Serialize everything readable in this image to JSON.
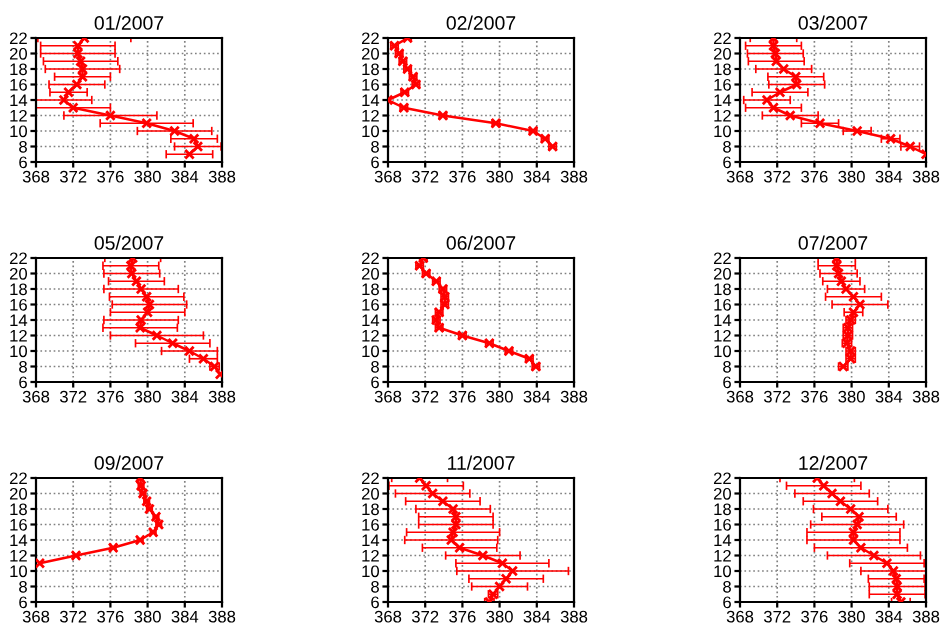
{
  "chart_data": [
    {
      "type": "line",
      "title": "01/2007",
      "color": "#ff0000",
      "marker": "cross",
      "line_style": "solid",
      "grid": true,
      "xlim": [
        368,
        388
      ],
      "ylim": [
        6,
        22
      ],
      "xticks": [
        368,
        372,
        376,
        380,
        384,
        388
      ],
      "yticks": [
        6,
        8,
        10,
        12,
        14,
        16,
        18,
        20,
        22
      ],
      "x": [
        384.5,
        385.4,
        385,
        382.9,
        379.9,
        376,
        372,
        371,
        371.5,
        372.4,
        373,
        373,
        372.8,
        372.5,
        372.5,
        373.2
      ],
      "values": [
        7,
        8,
        9,
        10,
        11,
        12,
        13,
        14,
        15,
        16,
        17,
        18,
        19,
        20,
        21,
        22
      ],
      "xerrors": [
        2.5,
        2.5,
        2.5,
        4,
        5,
        5,
        4,
        3,
        2,
        3,
        3,
        4,
        4,
        4,
        4,
        5
      ]
    },
    {
      "type": "line",
      "title": "02/2007",
      "color": "#ff0000",
      "marker": "cross",
      "line_style": "solid",
      "grid": true,
      "xlim": [
        368,
        388
      ],
      "ylim": [
        6,
        22
      ],
      "xticks": [
        368,
        372,
        376,
        380,
        384,
        388
      ],
      "yticks": [
        6,
        8,
        10,
        12,
        14,
        16,
        18,
        20,
        22
      ],
      "x": [
        385.7,
        384.9,
        383.6,
        379.6,
        373.9,
        369.7,
        368,
        369.8,
        371,
        370.7,
        370.1,
        369.6,
        369.2,
        368.7,
        370.1
      ],
      "values": [
        8,
        9,
        10,
        11,
        12,
        13,
        14,
        15,
        16,
        17,
        18,
        19,
        20,
        21,
        22
      ],
      "xerrors": [
        0.4,
        0.4,
        0.4,
        0.4,
        0.4,
        0.4,
        null,
        0.4,
        0.4,
        0.4,
        0.4,
        0.4,
        0.4,
        0.4,
        0.4
      ]
    },
    {
      "type": "line",
      "title": "03/2007",
      "color": "#ff0000",
      "marker": "cross",
      "line_style": "solid",
      "grid": true,
      "xlim": [
        368,
        388
      ],
      "ylim": [
        6,
        22
      ],
      "xticks": [
        368,
        372,
        376,
        380,
        384,
        388
      ],
      "yticks": [
        6,
        8,
        10,
        12,
        14,
        16,
        18,
        20,
        22
      ],
      "x": [
        388,
        386.3,
        384.2,
        380.6,
        376.6,
        373.4,
        371.6,
        370.9,
        372.3,
        374.1,
        374,
        372.7,
        371.9,
        371.8,
        371.6,
        371.6
      ],
      "values": [
        7,
        8,
        9,
        10,
        11,
        12,
        13,
        14,
        15,
        16,
        17,
        18,
        19,
        20,
        21,
        22
      ],
      "xerrors": [
        null,
        1,
        1,
        1.5,
        2,
        3,
        3,
        2.5,
        3,
        3,
        3,
        3,
        3,
        3,
        3,
        2.5
      ]
    },
    {
      "type": "line",
      "title": "05/2007",
      "color": "#ff0000",
      "marker": "cross",
      "line_style": "solid",
      "grid": true,
      "xlim": [
        368,
        388
      ],
      "ylim": [
        6,
        22
      ],
      "xticks": [
        368,
        372,
        376,
        380,
        384,
        388
      ],
      "yticks": [
        6,
        8,
        10,
        12,
        14,
        16,
        18,
        20,
        22
      ],
      "x": [
        387.8,
        387.2,
        386,
        384.5,
        382.7,
        381,
        379.2,
        379.3,
        380,
        380.2,
        379.9,
        379.3,
        378.8,
        378.3,
        378.2,
        378.4
      ],
      "values": [
        7,
        8,
        9,
        10,
        11,
        12,
        13,
        14,
        15,
        16,
        17,
        18,
        19,
        20,
        21,
        22
      ],
      "xerrors": [
        null,
        0.5,
        1.5,
        3,
        4,
        5,
        4,
        4,
        4,
        4,
        4,
        4,
        3,
        3,
        3,
        3
      ]
    },
    {
      "type": "line",
      "title": "06/2007",
      "color": "#ff0000",
      "marker": "cross",
      "line_style": "solid",
      "grid": true,
      "xlim": [
        368,
        388
      ],
      "ylim": [
        6,
        22
      ],
      "xticks": [
        368,
        372,
        376,
        380,
        384,
        388
      ],
      "yticks": [
        6,
        8,
        10,
        12,
        14,
        16,
        18,
        20,
        22
      ],
      "x": [
        383.9,
        383.2,
        381,
        378.9,
        376,
        373.5,
        373.2,
        373.5,
        374.1,
        374.1,
        373.9,
        373.2,
        372.1,
        371.4,
        371.8
      ],
      "values": [
        8,
        9,
        10,
        11,
        12,
        13,
        14,
        15,
        16,
        17,
        18,
        19,
        20,
        21,
        22
      ],
      "xerrors": [
        0.4,
        0.4,
        0.4,
        0.4,
        0.4,
        0.4,
        0.4,
        0.4,
        0.4,
        0.4,
        0.4,
        0.4,
        0.4,
        0.4,
        0.4
      ]
    },
    {
      "type": "line",
      "title": "07/2007",
      "color": "#ff0000",
      "marker": "cross",
      "line_style": "solid",
      "grid": true,
      "xlim": [
        368,
        388
      ],
      "ylim": [
        6,
        22
      ],
      "xticks": [
        368,
        372,
        376,
        380,
        384,
        388
      ],
      "yticks": [
        6,
        8,
        10,
        12,
        14,
        16,
        18,
        20,
        22
      ],
      "x": [
        379.1,
        379.9,
        379.9,
        379.5,
        379.6,
        379.6,
        379.9,
        380.2,
        380.9,
        380.2,
        379.4,
        378.9,
        378.6,
        378.4,
        378.4
      ],
      "values": [
        8,
        9,
        10,
        11,
        12,
        13,
        14,
        15,
        16,
        17,
        18,
        19,
        20,
        21,
        22
      ],
      "xerrors": [
        0.5,
        0.5,
        0.5,
        0.5,
        0.5,
        0.5,
        0.5,
        1,
        3,
        3,
        2,
        2,
        2,
        2,
        2
      ]
    },
    {
      "type": "line",
      "title": "09/2007",
      "color": "#ff0000",
      "marker": "cross",
      "line_style": "solid",
      "grid": true,
      "xlim": [
        368,
        388
      ],
      "ylim": [
        6,
        22
      ],
      "xticks": [
        368,
        372,
        376,
        380,
        384,
        388
      ],
      "yticks": [
        6,
        8,
        10,
        12,
        14,
        16,
        18,
        20,
        22
      ],
      "x": [
        368.4,
        372.3,
        376.3,
        379.2,
        380.6,
        381.2,
        380.9,
        380.2,
        379.9,
        379.5,
        379.3,
        379.2
      ],
      "values": [
        11,
        12,
        13,
        14,
        15,
        16,
        17,
        18,
        19,
        20,
        21,
        22
      ],
      "xerrors": [
        null,
        0.3,
        0.3,
        0.3,
        0.3,
        0.3,
        0.3,
        0.3,
        0.3,
        0.3,
        0.3,
        0.3
      ]
    },
    {
      "type": "line",
      "title": "11/2007",
      "color": "#ff0000",
      "marker": "cross",
      "line_style": "solid",
      "grid": true,
      "xlim": [
        368,
        388
      ],
      "ylim": [
        6,
        22
      ],
      "xticks": [
        368,
        372,
        376,
        380,
        384,
        388
      ],
      "yticks": [
        6,
        8,
        10,
        12,
        14,
        16,
        18,
        20,
        22
      ],
      "x": [
        378.9,
        379.3,
        380,
        380.7,
        381.4,
        380.3,
        378.2,
        375.7,
        374.8,
        375,
        375.3,
        375.3,
        375,
        373.9,
        372.8,
        372.1,
        371.4
      ],
      "values": [
        6,
        7,
        8,
        9,
        10,
        11,
        12,
        13,
        14,
        15,
        16,
        17,
        18,
        19,
        20,
        21,
        22
      ],
      "xerrors": [
        0.5,
        0.5,
        3,
        4,
        6,
        5,
        4,
        4,
        5,
        5,
        4,
        4,
        4,
        4,
        4,
        4,
        3
      ]
    },
    {
      "type": "line",
      "title": "12/2007",
      "color": "#ff0000",
      "marker": "cross",
      "line_style": "solid",
      "grid": true,
      "xlim": [
        368,
        388
      ],
      "ylim": [
        6,
        22
      ],
      "xticks": [
        368,
        372,
        376,
        380,
        384,
        388
      ],
      "yticks": [
        6,
        8,
        10,
        12,
        14,
        16,
        18,
        20,
        22
      ],
      "x": [
        385.3,
        384.9,
        384.9,
        384.8,
        384.5,
        383.8,
        382.4,
        381,
        380.2,
        380.2,
        380.6,
        380.8,
        379.9,
        378.8,
        377.9,
        377,
        376.3
      ],
      "values": [
        6,
        7,
        8,
        9,
        10,
        11,
        12,
        13,
        14,
        15,
        16,
        17,
        18,
        19,
        20,
        21,
        22
      ],
      "xerrors": [
        1,
        3,
        3,
        3,
        3.5,
        4,
        5,
        5,
        5,
        5,
        5,
        4,
        4,
        4,
        4,
        4,
        4
      ]
    }
  ]
}
